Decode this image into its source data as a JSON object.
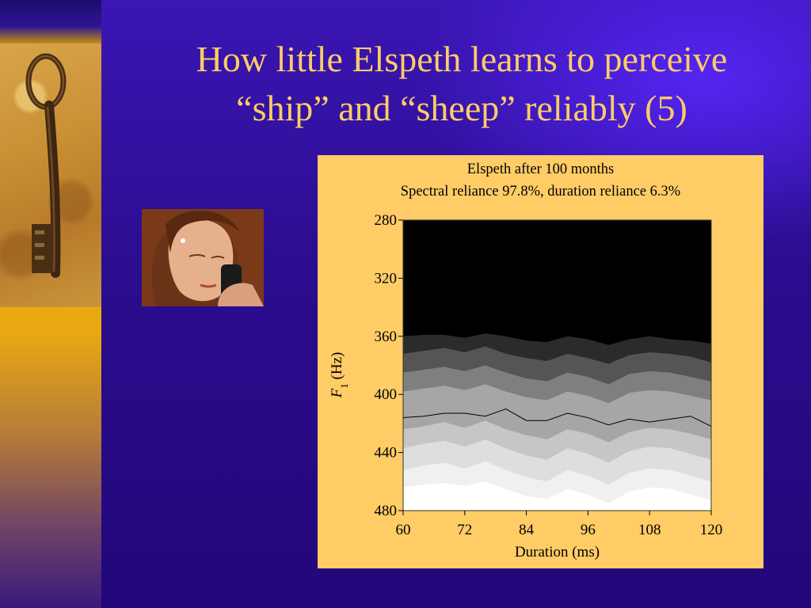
{
  "slide": {
    "title_line1": "How little Elspeth learns to perceive",
    "title_line2": "“ship” and “sheep” reliably (5)",
    "colors": {
      "title": "#ffcc66",
      "background": "#2a0d8e",
      "chart_panel": "#ffcc66"
    },
    "images": {
      "left": "antique-key-photo",
      "portrait": "woman-on-phone-photo"
    }
  },
  "chart_data": {
    "type": "heatmap",
    "title": "Elspeth after 100 months",
    "subtitle": "Spectral reliance 97.8%, duration reliance 6.3%",
    "xlabel": "Duration (ms)",
    "ylabel_italic": "F",
    "ylabel_subscript": "1",
    "ylabel_rest": " (Hz)",
    "x_ticks": [
      "60",
      "72",
      "84",
      "96",
      "108",
      "120"
    ],
    "y_ticks": [
      "280",
      "320",
      "360",
      "400",
      "440",
      "480"
    ],
    "xlim": [
      60,
      120
    ],
    "ylim": [
      280,
      480
    ],
    "y_inverted": true,
    "colormap": "black (low) to white (high), 7 grey levels",
    "x": [
      60,
      64,
      68,
      72,
      76,
      80,
      84,
      88,
      92,
      96,
      100,
      104,
      108,
      112,
      116,
      120
    ],
    "contour_levels_hz": [
      [
        360,
        359,
        359,
        361,
        358,
        360,
        363,
        364,
        360,
        362,
        366,
        362,
        360,
        362,
        363,
        365
      ],
      [
        372,
        370,
        368,
        371,
        367,
        372,
        375,
        377,
        372,
        375,
        379,
        373,
        371,
        372,
        374,
        378
      ],
      [
        385,
        383,
        381,
        384,
        380,
        385,
        389,
        391,
        385,
        388,
        393,
        386,
        384,
        385,
        388,
        391
      ],
      [
        398,
        396,
        394,
        397,
        393,
        398,
        402,
        404,
        398,
        401,
        406,
        399,
        397,
        398,
        401,
        404
      ],
      [
        424,
        422,
        419,
        423,
        418,
        424,
        428,
        431,
        424,
        427,
        433,
        426,
        423,
        424,
        427,
        431
      ],
      [
        437,
        434,
        432,
        436,
        431,
        437,
        442,
        445,
        437,
        441,
        447,
        439,
        436,
        437,
        441,
        445
      ],
      [
        452,
        449,
        447,
        451,
        446,
        452,
        457,
        460,
        452,
        456,
        462,
        454,
        451,
        452,
        456,
        460
      ],
      [
        464,
        462,
        461,
        463,
        460,
        465,
        470,
        472,
        465,
        469,
        475,
        467,
        464,
        465,
        469,
        473
      ]
    ],
    "boundary": {
      "name": "category boundary",
      "y": [
        416,
        415,
        413,
        413,
        415,
        410,
        418,
        418,
        413,
        416,
        421,
        417,
        419,
        417,
        415,
        422
      ]
    }
  }
}
